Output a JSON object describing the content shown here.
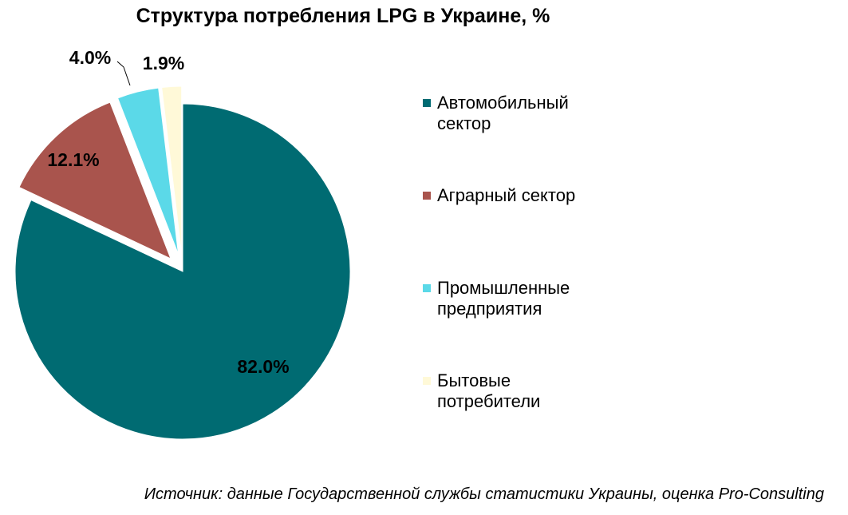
{
  "title": "Структура потребления LPG в Украине, %",
  "source": "Источник: данные Государственной службы статистики Украины, оценка Pro-Consulting",
  "chart_data": {
    "type": "pie",
    "title": "Структура потребления LPG в Украине, %",
    "categories": [
      "Автомобильный сектор",
      "Аграрный сектор",
      "Промышленные предприятия",
      "Бытовые потребители"
    ],
    "values": [
      82.0,
      12.1,
      4.0,
      1.9
    ],
    "data_labels": [
      "82.0%",
      "12.1%",
      "4.0%",
      "1.9%"
    ],
    "colors": [
      "#006B72",
      "#A9544D",
      "#5BD9E8",
      "#FFF9D8"
    ],
    "exploded": [
      false,
      true,
      true,
      true
    ],
    "legend_position": "right"
  },
  "legend": [
    {
      "label": "Автомобильный сектор",
      "color": "#006B72"
    },
    {
      "label": "Аграрный сектор",
      "color": "#A9544D"
    },
    {
      "label": "Промышленные предприятия",
      "color": "#5BD9E8"
    },
    {
      "label": "Бытовые потребители",
      "color": "#FFF9D8"
    }
  ]
}
